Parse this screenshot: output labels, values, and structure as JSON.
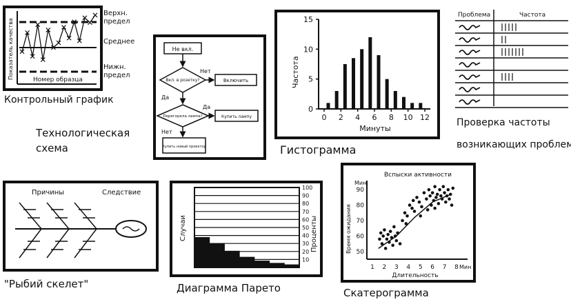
{
  "control_chart": {
    "caption": "Контрольный график",
    "y_label": "Показатель качества",
    "x_label": "Номер образца",
    "upper_limit": "Верхн. предел",
    "mean": "Среднее",
    "lower_limit": "Нижн. предел"
  },
  "flowchart": {
    "caption_line1": "Технологическая",
    "caption_line2": "схема",
    "start": "Не вкл.",
    "decision1": "Вкл. в розетку?",
    "no1": "Нет",
    "action1": "Включить",
    "yes1": "Да",
    "decision2": "Перегорела лампа?",
    "yes2": "Да",
    "action2": "Купить лампу",
    "no2": "Нет",
    "end": "Купить новый проектор"
  },
  "histogram": {
    "caption": "Гистограмма",
    "y_label": "Частота",
    "x_label": "Минуты",
    "y_ticks": [
      "0",
      "5",
      "10",
      "15"
    ],
    "x_ticks": [
      "0",
      "2",
      "4",
      "6",
      "8",
      "10",
      "12"
    ]
  },
  "checksheet": {
    "caption_line1": "Проверка частоты",
    "caption_line2": "возникающих проблем",
    "col1": "Проблема",
    "col2": "Частота"
  },
  "fishbone": {
    "caption": "\"Рыбий скелет\"",
    "causes": "Причины",
    "effect": "Следствие"
  },
  "pareto": {
    "caption": "Диаграмма Парето",
    "left_label": "Случаи",
    "right_label": "Проценты",
    "right_ticks": [
      "10",
      "20",
      "30",
      "40",
      "50",
      "60",
      "70",
      "80",
      "90",
      "100"
    ]
  },
  "scatter": {
    "caption": "Скатерограмма",
    "title": "Вспыски активности",
    "y_label": "Время ожидания",
    "y_unit": "Мин",
    "x_label": "Длительность",
    "x_unit": "Мин",
    "y_ticks": [
      "50",
      "60",
      "70",
      "80",
      "90"
    ],
    "x_ticks": [
      "1",
      "2",
      "3",
      "4",
      "5",
      "6",
      "7",
      "8"
    ]
  },
  "chart_data": [
    {
      "type": "bar",
      "name_ref": "histogram",
      "x": [
        0,
        1,
        2,
        3,
        4,
        5,
        6,
        7,
        8,
        9,
        10,
        11
      ],
      "values": [
        1,
        3,
        7.5,
        8.5,
        10,
        12,
        9,
        5,
        3,
        2,
        1,
        1
      ],
      "ylim": [
        0,
        15
      ],
      "xlim": [
        0,
        12
      ]
    },
    {
      "type": "scatter",
      "name_ref": "scatter",
      "xlim": [
        1,
        8
      ],
      "ylim": [
        45,
        95
      ],
      "points": [
        [
          1.6,
          58
        ],
        [
          1.7,
          62
        ],
        [
          1.8,
          55
        ],
        [
          1.9,
          60
        ],
        [
          2.0,
          64
        ],
        [
          2.1,
          52
        ],
        [
          2.2,
          58
        ],
        [
          2.3,
          61
        ],
        [
          2.4,
          56
        ],
        [
          2.5,
          63
        ],
        [
          2.6,
          59
        ],
        [
          2.7,
          54
        ],
        [
          2.8,
          66
        ],
        [
          2.9,
          60
        ],
        [
          3.0,
          57
        ],
        [
          3.1,
          62
        ],
        [
          3.3,
          55
        ],
        [
          3.5,
          70
        ],
        [
          3.7,
          75
        ],
        [
          3.9,
          73
        ],
        [
          4.1,
          80
        ],
        [
          4.3,
          78
        ],
        [
          4.5,
          76
        ],
        [
          4.7,
          85
        ],
        [
          4.9,
          82
        ],
        [
          5.1,
          79
        ],
        [
          5.3,
          88
        ],
        [
          5.5,
          84
        ],
        [
          5.7,
          90
        ],
        [
          5.8,
          86
        ],
        [
          5.9,
          80
        ],
        [
          6.0,
          88
        ],
        [
          6.1,
          83
        ],
        [
          6.2,
          92
        ],
        [
          6.3,
          85
        ],
        [
          6.4,
          87
        ],
        [
          6.5,
          81
        ],
        [
          6.6,
          90
        ],
        [
          6.7,
          86
        ],
        [
          6.8,
          84
        ],
        [
          6.9,
          92
        ],
        [
          7.0,
          88
        ],
        [
          7.1,
          82
        ],
        [
          7.2,
          86
        ],
        [
          7.3,
          90
        ],
        [
          7.4,
          84
        ],
        [
          7.5,
          87
        ],
        [
          7.6,
          80
        ],
        [
          7.7,
          91
        ],
        [
          5.0,
          73
        ],
        [
          4.4,
          83
        ],
        [
          3.8,
          68
        ],
        [
          6.2,
          78
        ],
        [
          5.6,
          77
        ]
      ],
      "trend": [
        [
          1.5,
          52
        ],
        [
          3,
          60
        ],
        [
          4.5,
          72
        ],
        [
          6,
          82
        ],
        [
          7.5,
          87
        ]
      ]
    },
    {
      "type": "line",
      "name_ref": "control_chart",
      "values": [
        42,
        70,
        35,
        82,
        30,
        74,
        48,
        55,
        78,
        62,
        86,
        58,
        92,
        85,
        96
      ],
      "ylim": [
        0,
        100
      ]
    },
    {
      "type": "bar",
      "name_ref": "pareto",
      "values": [
        40,
        32,
        22,
        14,
        9,
        6,
        4
      ]
    }
  ]
}
